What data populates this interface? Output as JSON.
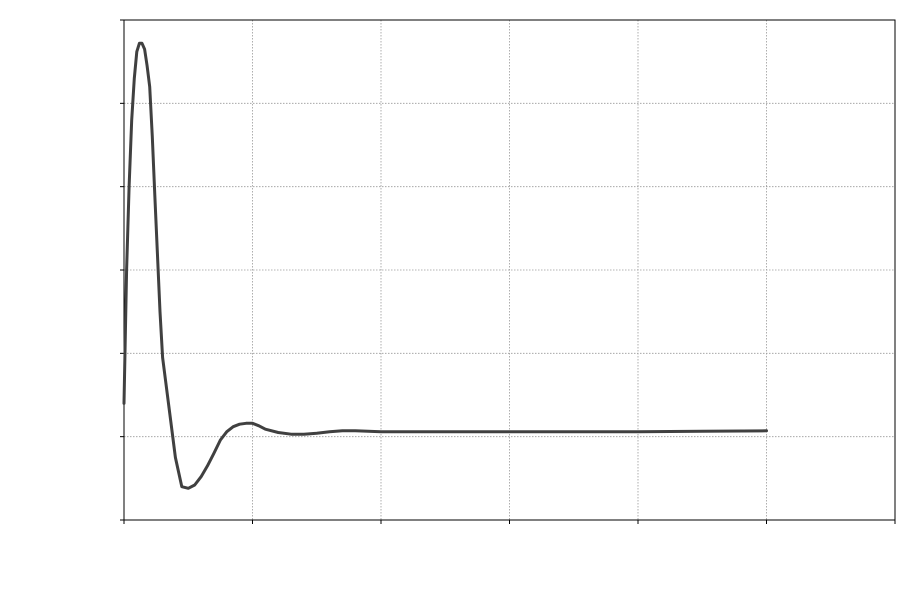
{
  "chart_data": {
    "type": "line",
    "title": "",
    "xlabel": "",
    "ylabel": "",
    "xlim": [
      0,
      6
    ],
    "ylim": [
      -1,
      5
    ],
    "x_gridlines": [
      1,
      2,
      3,
      4,
      5
    ],
    "y_gridlines": [
      0,
      1,
      2,
      3,
      4
    ],
    "grid": true,
    "legend": "none",
    "colors": {
      "series": "#404040",
      "grid": "#9a9a9a",
      "axis": "#000000"
    },
    "series": [
      {
        "x": [
          0.0,
          0.02,
          0.04,
          0.06,
          0.08,
          0.1,
          0.12,
          0.14,
          0.16,
          0.18,
          0.2,
          0.22,
          0.24,
          0.26,
          0.28,
          0.3,
          0.35,
          0.4,
          0.45,
          0.5,
          0.55,
          0.6,
          0.65,
          0.7,
          0.75,
          0.8,
          0.85,
          0.9,
          0.95,
          1.0,
          1.05,
          1.1,
          1.2,
          1.3,
          1.4,
          1.5,
          1.6,
          1.7,
          1.8,
          2.0,
          2.5,
          3.0,
          3.5,
          4.0,
          4.5,
          5.0
        ],
        "y": [
          0.4,
          2.0,
          3.0,
          3.8,
          4.3,
          4.62,
          4.72,
          4.72,
          4.65,
          4.45,
          4.2,
          3.6,
          2.9,
          2.2,
          1.5,
          0.95,
          0.35,
          -0.25,
          -0.6,
          -0.62,
          -0.58,
          -0.48,
          -0.35,
          -0.2,
          -0.04,
          0.06,
          0.12,
          0.15,
          0.16,
          0.16,
          0.13,
          0.09,
          0.05,
          0.03,
          0.03,
          0.04,
          0.06,
          0.07,
          0.07,
          0.06,
          0.06,
          0.06,
          0.06,
          0.06,
          0.065,
          0.07
        ]
      }
    ]
  }
}
